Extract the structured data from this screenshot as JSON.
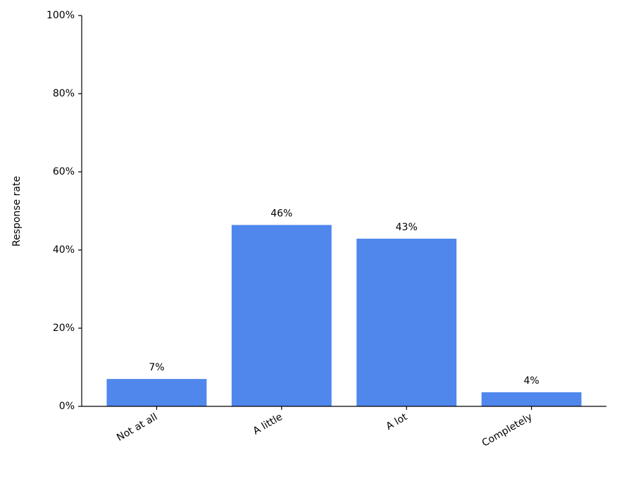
{
  "chart_data": {
    "type": "bar",
    "ylabel": "Response rate",
    "categories": [
      "Not at all",
      "A little",
      "A lot",
      "Completely"
    ],
    "values": [
      7.0,
      46.4,
      42.9,
      3.6
    ],
    "value_labels": [
      "7%",
      "46%",
      "43%",
      "4%"
    ],
    "color": "#4f87ec",
    "ylim": [
      0,
      100
    ],
    "yticks": [
      {
        "value": 0,
        "label": "0%"
      },
      {
        "value": 20,
        "label": "20%"
      },
      {
        "value": 40,
        "label": "40%"
      },
      {
        "value": 60,
        "label": "60%"
      },
      {
        "value": 80,
        "label": "80%"
      },
      {
        "value": 100,
        "label": "100%"
      }
    ],
    "grid": false
  }
}
